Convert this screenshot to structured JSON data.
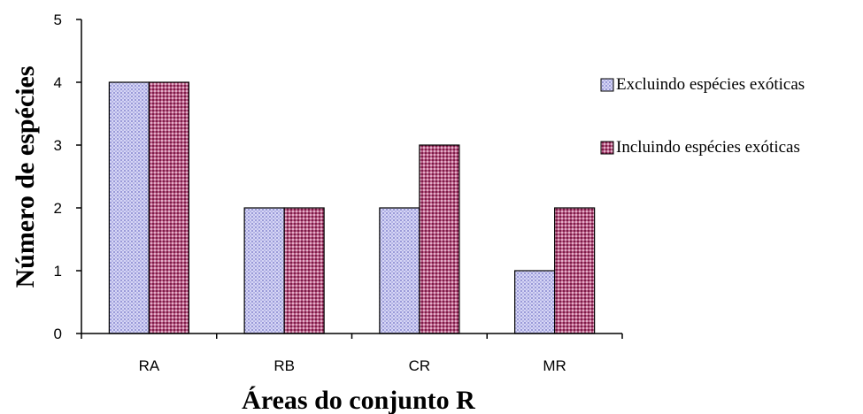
{
  "chart_data": {
    "type": "bar",
    "categories": [
      "RA",
      "RB",
      "CR",
      "MR"
    ],
    "series": [
      {
        "name": "Excluindo espécies exóticas",
        "values": [
          4,
          2,
          2,
          1
        ],
        "color": "#c8c8f0",
        "pattern": "blue-dots"
      },
      {
        "name": "Incluindo espécies exóticas",
        "values": [
          4,
          2,
          3,
          2
        ],
        "color": "#a04070",
        "pattern": "maroon-dots"
      }
    ],
    "xlabel": "Áreas do conjunto R",
    "ylabel": "Número de espécies",
    "ylim": [
      0,
      5
    ],
    "yticks": [
      "0",
      "1",
      "2",
      "3",
      "4",
      "5"
    ],
    "grid": false,
    "legend_position": "right"
  }
}
